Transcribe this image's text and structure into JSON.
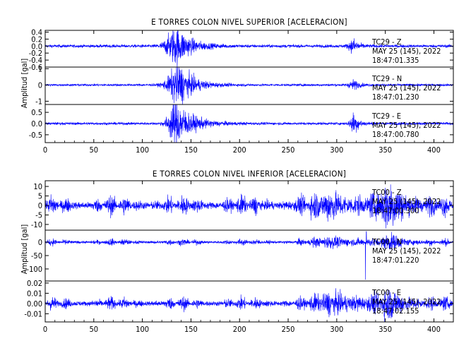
{
  "chart_data": [
    {
      "type": "line",
      "title": "E TORRES COLON NIVEL SUPERIOR [ACELERACION]",
      "ylabel": "Amplitud [gal]",
      "xlabel": "",
      "xlim": [
        0,
        420
      ],
      "x_ticks": [
        0,
        50,
        100,
        150,
        200,
        250,
        300,
        350,
        400
      ],
      "color": "#0000ff",
      "grid": false,
      "panels": [
        {
          "channel": "TC29 - Z",
          "date": "MAY 25 (145), 2022",
          "time": "18:47:01.335",
          "ylim": [
            -0.6,
            0.45
          ],
          "y_ticks": [
            0.4,
            0.2,
            0.0,
            -0.2,
            -0.4,
            -0.6
          ],
          "y_tick_labels": [
            "0.4",
            "0.2",
            "0.0",
            "-0.2",
            "-0.4",
            "-0.6"
          ],
          "noise": 0.03,
          "events": [
            {
              "t": 136,
              "amp": 0.38,
              "rise": 8,
              "decay": 14
            },
            {
              "t": 318,
              "amp": 0.13,
              "rise": 4,
              "decay": 5
            }
          ]
        },
        {
          "channel": "TC29 - N",
          "date": "MAY 25 (145), 2022",
          "time": "18:47:01.230",
          "ylim": [
            -1.2,
            1.1
          ],
          "y_ticks": [
            1,
            0,
            -1
          ],
          "y_tick_labels": [
            "1",
            "0",
            "-1"
          ],
          "noise": 0.05,
          "events": [
            {
              "t": 138,
              "amp": 0.9,
              "rise": 8,
              "decay": 14
            },
            {
              "t": 318,
              "amp": 0.2,
              "rise": 4,
              "decay": 5
            }
          ]
        },
        {
          "channel": "TC29 - E",
          "date": "MAY 25 (145), 2022",
          "time": "18:47:00.780",
          "ylim": [
            -0.85,
            0.85
          ],
          "y_ticks": [
            0.5,
            0.0,
            -0.5
          ],
          "y_tick_labels": [
            "0.5",
            "0.0",
            "-0.5"
          ],
          "noise": 0.04,
          "events": [
            {
              "t": 135,
              "amp": 0.7,
              "rise": 6,
              "decay": 16
            },
            {
              "t": 318,
              "amp": 0.32,
              "rise": 3,
              "decay": 5
            }
          ]
        }
      ]
    },
    {
      "type": "line",
      "title": "E TORRES COLON NIVEL INFERIOR [ACELERACION]",
      "ylabel": "Amplitud [gal]",
      "xlabel": "",
      "xlim": [
        0,
        420
      ],
      "x_ticks": [
        0,
        50,
        100,
        150,
        200,
        250,
        300,
        350,
        400
      ],
      "color": "#0000ff",
      "grid": false,
      "panels": [
        {
          "channel": "TC00 - Z",
          "date": "MAY 25 (145), 2022",
          "time": "18:47:00.300",
          "ylim": [
            -13,
            13
          ],
          "y_ticks": [
            10,
            5,
            0,
            -5,
            -10
          ],
          "y_tick_labels": [
            "10",
            "5",
            "0",
            "-5",
            "-10"
          ],
          "noise": 2.0,
          "bursts": true,
          "events": [
            {
              "t": 298,
              "amp": 4,
              "rise": 15,
              "decay": 20
            },
            {
              "t": 358,
              "amp": 7,
              "rise": 10,
              "decay": 14
            }
          ]
        },
        {
          "channel": "TC00 - N",
          "date": "MAY 25 (145), 2022",
          "time": "18:47:01.220",
          "ylim": [
            -145,
            45
          ],
          "y_ticks": [
            0,
            -50,
            -100
          ],
          "y_tick_labels": [
            "0",
            "-50",
            "-100"
          ],
          "noise": 5,
          "bursts": true,
          "events": [
            {
              "t": 300,
              "amp": 12,
              "rise": 15,
              "decay": 20
            },
            {
              "t": 358,
              "amp": 18,
              "rise": 8,
              "decay": 12
            }
          ],
          "spikes": [
            {
              "t": 329.5,
              "v": -140
            },
            {
              "t": 330.5,
              "v": 40
            }
          ]
        },
        {
          "channel": "TC00 - E",
          "date": "MAY 25 (145), 2022",
          "time": "18:47:02.155",
          "ylim": [
            -0.018,
            0.022
          ],
          "y_ticks": [
            0.02,
            0.01,
            0.0,
            -0.01
          ],
          "y_tick_labels": [
            "0.02",
            "0.01",
            "0.00",
            "-0.01"
          ],
          "noise": 0.0025,
          "bursts": true,
          "events": [
            {
              "t": 300,
              "amp": 0.006,
              "rise": 15,
              "decay": 25
            },
            {
              "t": 358,
              "amp": 0.008,
              "rise": 10,
              "decay": 14
            }
          ]
        }
      ]
    }
  ]
}
